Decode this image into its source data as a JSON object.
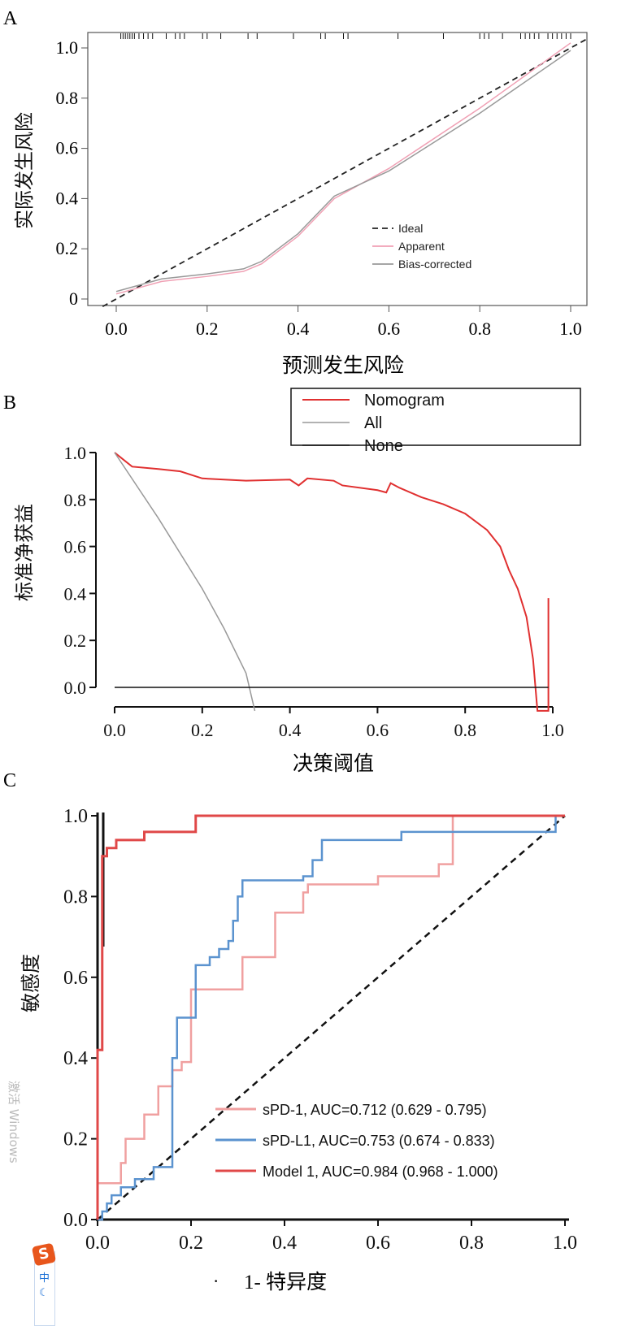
{
  "chart_data": [
    {
      "type": "line",
      "panel_label": "A",
      "xlabel": "预测发生风险",
      "ylabel": "实际发生风险",
      "xlim": [
        0,
        1
      ],
      "ylim": [
        0,
        1
      ],
      "xticks": [
        "0.0",
        "0.2",
        "0.4",
        "0.6",
        "0.8",
        "1.0"
      ],
      "yticks": [
        "0",
        "0.2",
        "0.4",
        "0.6",
        "0.8",
        "1.0"
      ],
      "legend": {
        "placement": "bottom-right",
        "entries": [
          "Ideal",
          "Apparent",
          "Bias-corrected"
        ]
      },
      "series": [
        {
          "name": "Ideal",
          "color": "#222222",
          "x": [
            -0.03,
            1.04
          ],
          "y": [
            -0.03,
            1.04
          ]
        },
        {
          "name": "Apparent",
          "color": "#f0a0b4",
          "x": [
            0,
            0.1,
            0.2,
            0.28,
            0.32,
            0.4,
            0.48,
            0.6,
            0.8,
            1.0
          ],
          "y": [
            0.02,
            0.07,
            0.09,
            0.11,
            0.14,
            0.25,
            0.4,
            0.52,
            0.76,
            1.02
          ]
        },
        {
          "name": "Bias-corrected",
          "color": "#999999",
          "x": [
            0,
            0.1,
            0.2,
            0.28,
            0.32,
            0.4,
            0.48,
            0.6,
            0.8,
            1.0
          ],
          "y": [
            0.03,
            0.08,
            0.1,
            0.12,
            0.15,
            0.26,
            0.41,
            0.51,
            0.74,
            0.99
          ]
        }
      ],
      "rug_x": [
        0.01,
        0.015,
        0.02,
        0.025,
        0.03,
        0.035,
        0.04,
        0.05,
        0.06,
        0.07,
        0.08,
        0.11,
        0.13,
        0.14,
        0.15,
        0.19,
        0.2,
        0.23,
        0.29,
        0.31,
        0.39,
        0.45,
        0.46,
        0.5,
        0.51,
        0.62,
        0.72,
        0.8,
        0.81,
        0.82,
        0.85,
        0.89,
        0.9,
        0.91,
        0.92,
        0.93,
        0.95,
        0.96,
        0.97,
        0.98,
        0.99,
        1.0
      ]
    },
    {
      "type": "line",
      "panel_label": "B",
      "xlabel": "决策阈值",
      "ylabel": "标准净获益",
      "xlim": [
        0,
        1
      ],
      "ylim": [
        -0.1,
        1
      ],
      "xticks": [
        "0.0",
        "0.2",
        "0.4",
        "0.6",
        "0.8",
        "1.0"
      ],
      "yticks": [
        "0.0",
        "0.2",
        "0.4",
        "0.6",
        "0.8",
        "1.0"
      ],
      "legend": {
        "placement": "top-right",
        "entries": [
          "Nomogram",
          "All",
          "None"
        ]
      },
      "series": [
        {
          "name": "Nomogram",
          "color": "#e03030",
          "x": [
            0,
            0.02,
            0.04,
            0.1,
            0.15,
            0.2,
            0.3,
            0.4,
            0.42,
            0.44,
            0.5,
            0.52,
            0.6,
            0.62,
            0.63,
            0.65,
            0.7,
            0.75,
            0.8,
            0.85,
            0.88,
            0.9,
            0.92,
            0.94,
            0.955,
            0.965,
            0.99,
            0.99
          ],
          "y": [
            1,
            0.97,
            0.94,
            0.93,
            0.92,
            0.89,
            0.88,
            0.885,
            0.86,
            0.89,
            0.88,
            0.86,
            0.84,
            0.83,
            0.87,
            0.85,
            0.81,
            0.78,
            0.74,
            0.67,
            0.6,
            0.5,
            0.42,
            0.3,
            0.12,
            -0.1,
            -0.1,
            0.38
          ]
        },
        {
          "name": "All",
          "color": "#999999",
          "x": [
            0,
            0.1,
            0.2,
            0.25,
            0.3,
            0.32
          ],
          "y": [
            1,
            0.72,
            0.42,
            0.25,
            0.06,
            -0.1
          ]
        },
        {
          "name": "None",
          "color": "#111111",
          "x": [
            0,
            0.99
          ],
          "y": [
            0,
            0
          ]
        }
      ]
    },
    {
      "type": "line",
      "panel_label": "C",
      "xlabel": "1- 特异度",
      "xlabel_prefix": "·",
      "ylabel": "敏感度",
      "xlim": [
        0,
        1
      ],
      "ylim": [
        0,
        1
      ],
      "xticks": [
        "0.0",
        "0.2",
        "0.4",
        "0.6",
        "0.8",
        "1.0"
      ],
      "yticks": [
        "0.0",
        "0.2",
        "0.4",
        "0.6",
        "0.8",
        "1.0"
      ],
      "legend": {
        "placement": "bottom-right",
        "entries": [
          "sPD-1, AUC=0.712 (0.629 - 0.795)",
          "sPD-L1, AUC=0.753 (0.674 - 0.833)",
          "Model 1, AUC=0.984 (0.968 - 1.000)"
        ]
      },
      "series": [
        {
          "name": "sPD-1",
          "auc": 0.712,
          "ci": [
            0.629,
            0.795
          ],
          "color": "#f0a0a0",
          "x": [
            0,
            0,
            0.05,
            0.05,
            0.06,
            0.1,
            0.13,
            0.16,
            0.18,
            0.2,
            0.31,
            0.31,
            0.38,
            0.44,
            0.45,
            0.6,
            0.72,
            0.73,
            0.76,
            0.76,
            1
          ],
          "y": [
            0,
            0.09,
            0.09,
            0.14,
            0.2,
            0.26,
            0.33,
            0.37,
            0.39,
            0.57,
            0.57,
            0.65,
            0.76,
            0.81,
            0.83,
            0.85,
            0.85,
            0.88,
            0.93,
            1,
            1
          ]
        },
        {
          "name": "sPD-L1",
          "auc": 0.753,
          "ci": [
            0.674,
            0.833
          ],
          "color": "#5b93cf",
          "x": [
            0,
            0.01,
            0.02,
            0.03,
            0.05,
            0.08,
            0.12,
            0.16,
            0.16,
            0.17,
            0.21,
            0.21,
            0.24,
            0.24,
            0.26,
            0.28,
            0.29,
            0.3,
            0.31,
            0.44,
            0.46,
            0.48,
            0.65,
            0.98,
            0.98,
            1
          ],
          "y": [
            0,
            0.02,
            0.04,
            0.06,
            0.08,
            0.1,
            0.13,
            0.15,
            0.4,
            0.5,
            0.5,
            0.63,
            0.63,
            0.65,
            0.67,
            0.69,
            0.74,
            0.8,
            0.84,
            0.85,
            0.89,
            0.94,
            0.96,
            0.96,
            1,
            1
          ]
        },
        {
          "name": "Model 1",
          "auc": 0.984,
          "ci": [
            0.968,
            1.0
          ],
          "color": "#e04848",
          "x": [
            0,
            0,
            0.01,
            0.01,
            0.02,
            0.02,
            0.04,
            0.04,
            0.1,
            0.1,
            0.21,
            0.21,
            1
          ],
          "y": [
            0,
            0.42,
            0.42,
            0.9,
            0.9,
            0.92,
            0.92,
            0.94,
            0.94,
            0.96,
            0.96,
            1,
            1
          ]
        },
        {
          "name": "Reference",
          "color": "#111111",
          "x": [
            0,
            1
          ],
          "y": [
            0,
            1
          ]
        }
      ]
    }
  ],
  "overlay": {
    "watermark": "激活 Windows",
    "ime_logo": "S",
    "ime_icons": [
      "中",
      "☾"
    ]
  }
}
